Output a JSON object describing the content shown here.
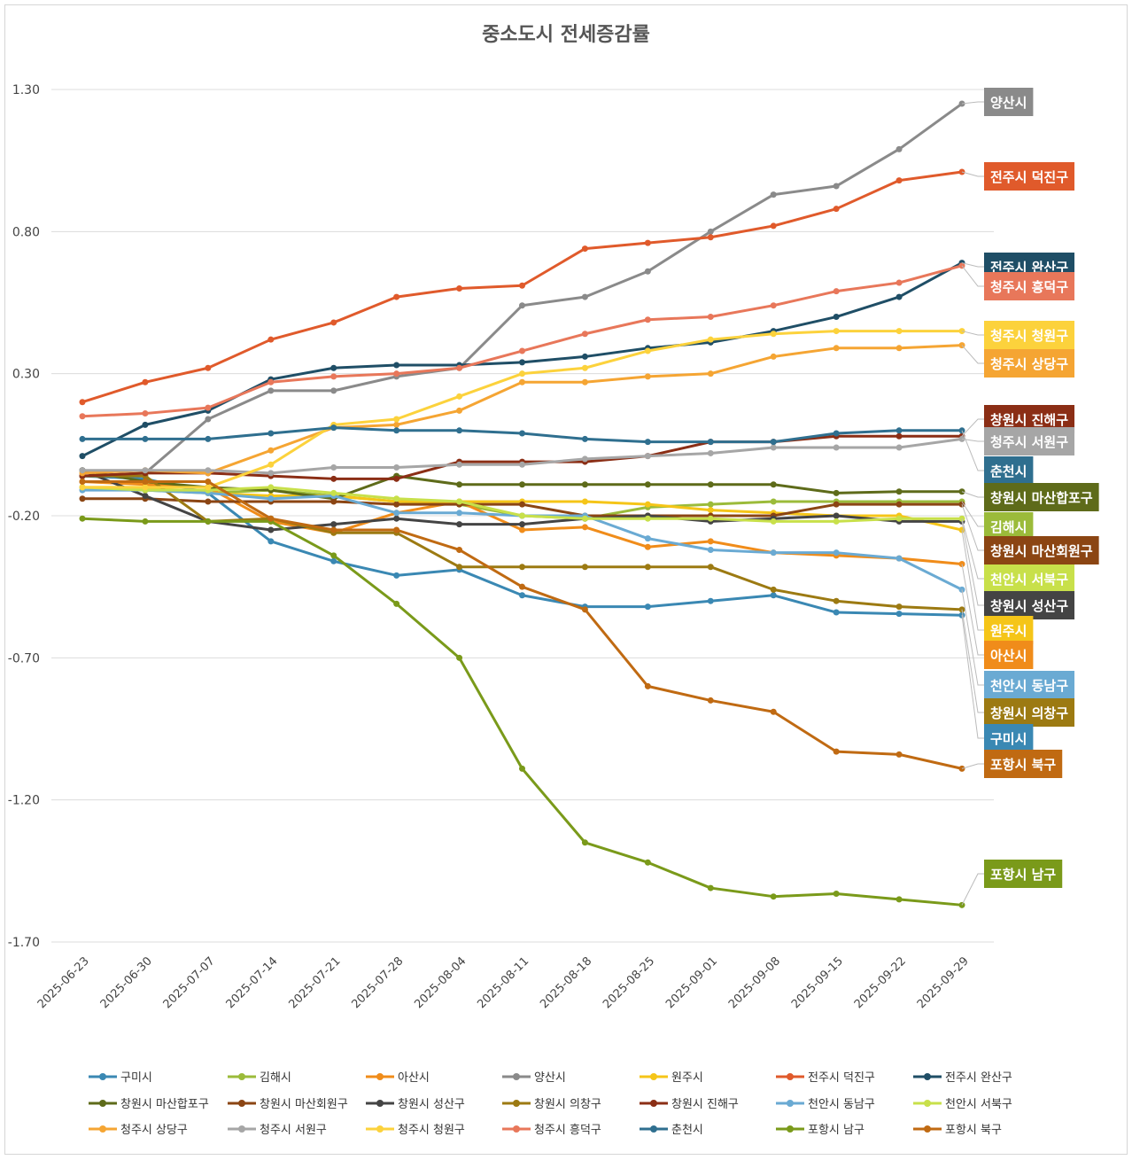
{
  "chart_data": {
    "type": "line",
    "title": "중소도시 전세증감률",
    "xlabel": "",
    "ylabel": "",
    "ylim": [
      -1.7,
      1.3
    ],
    "yticks": [
      1.3,
      0.8,
      0.3,
      -0.2,
      -0.7,
      -1.2,
      -1.7
    ],
    "ytick_labels": [
      "1.30",
      "0.80",
      "0.30",
      "-0.20",
      "-0.70",
      "-1.20",
      "-1.70"
    ],
    "categories": [
      "2025-06-23",
      "2025-06-30",
      "2025-07-07",
      "2025-07-14",
      "2025-07-21",
      "2025-07-28",
      "2025-08-04",
      "2025-08-11",
      "2025-08-18",
      "2025-08-25",
      "2025-09-01",
      "2025-09-08",
      "2025-09-15",
      "2025-09-22",
      "2025-09-29"
    ],
    "grid": true,
    "legend_position": "bottom",
    "series": [
      {
        "name": "구미시",
        "color": "#3a88b3",
        "values": [
          -0.06,
          -0.07,
          -0.12,
          -0.29,
          -0.36,
          -0.41,
          -0.39,
          -0.48,
          -0.52,
          -0.52,
          -0.5,
          -0.48,
          -0.54,
          -0.545,
          -0.55
        ]
      },
      {
        "name": "김해시",
        "color": "#9bbb3a",
        "values": [
          -0.1,
          -0.11,
          -0.12,
          -0.11,
          -0.13,
          -0.15,
          -0.16,
          -0.2,
          -0.21,
          -0.17,
          -0.16,
          -0.15,
          -0.15,
          -0.15,
          -0.15
        ]
      },
      {
        "name": "아산시",
        "color": "#f08c1a",
        "values": [
          -0.08,
          -0.09,
          -0.1,
          -0.22,
          -0.26,
          -0.19,
          -0.15,
          -0.25,
          -0.24,
          -0.31,
          -0.29,
          -0.33,
          -0.34,
          -0.35,
          -0.37
        ]
      },
      {
        "name": "양산시",
        "color": "#8a8a8a",
        "values": [
          -0.06,
          -0.05,
          0.14,
          0.24,
          0.24,
          0.29,
          0.32,
          0.54,
          0.57,
          0.66,
          0.8,
          0.93,
          0.96,
          1.09,
          1.25
        ]
      },
      {
        "name": "원주시",
        "color": "#f5c518",
        "values": [
          -0.1,
          -0.1,
          -0.12,
          -0.13,
          -0.13,
          -0.15,
          -0.15,
          -0.15,
          -0.15,
          -0.16,
          -0.18,
          -0.19,
          -0.2,
          -0.2,
          -0.25
        ]
      },
      {
        "name": "전주시 덕진구",
        "color": "#e05a2b",
        "values": [
          0.2,
          0.27,
          0.32,
          0.42,
          0.48,
          0.57,
          0.6,
          0.61,
          0.74,
          0.76,
          0.78,
          0.82,
          0.88,
          0.98,
          1.01
        ]
      },
      {
        "name": "전주시 완산구",
        "color": "#1f4e66",
        "values": [
          0.01,
          0.12,
          0.17,
          0.28,
          0.32,
          0.33,
          0.33,
          0.34,
          0.36,
          0.39,
          0.41,
          0.45,
          0.5,
          0.57,
          0.69
        ]
      },
      {
        "name": "창원시 마산합포구",
        "color": "#5e6b1a",
        "values": [
          -0.04,
          -0.08,
          -0.1,
          -0.11,
          -0.14,
          -0.06,
          -0.09,
          -0.09,
          -0.09,
          -0.09,
          -0.09,
          -0.09,
          -0.12,
          -0.115,
          -0.115
        ]
      },
      {
        "name": "창원시 마산회원구",
        "color": "#8b4513",
        "values": [
          -0.14,
          -0.14,
          -0.15,
          -0.15,
          -0.15,
          -0.16,
          -0.16,
          -0.16,
          -0.2,
          -0.2,
          -0.2,
          -0.2,
          -0.16,
          -0.16,
          -0.16
        ]
      },
      {
        "name": "창원시 성산구",
        "color": "#444444",
        "values": [
          -0.04,
          -0.13,
          -0.22,
          -0.25,
          -0.23,
          -0.21,
          -0.23,
          -0.23,
          -0.21,
          -0.2,
          -0.22,
          -0.21,
          -0.2,
          -0.22,
          -0.22
        ]
      },
      {
        "name": "창원시 의창구",
        "color": "#9c7a12",
        "values": [
          -0.06,
          -0.06,
          -0.22,
          -0.21,
          -0.26,
          -0.26,
          -0.38,
          -0.38,
          -0.38,
          -0.38,
          -0.38,
          -0.46,
          -0.5,
          -0.52,
          -0.53
        ]
      },
      {
        "name": "창원시 진해구",
        "color": "#8b2e15",
        "values": [
          -0.06,
          -0.05,
          -0.05,
          -0.06,
          -0.07,
          -0.07,
          -0.01,
          -0.01,
          -0.01,
          0.01,
          0.06,
          0.06,
          0.08,
          0.08,
          0.08
        ]
      },
      {
        "name": "천안시 동남구",
        "color": "#6aaad3",
        "values": [
          -0.11,
          -0.11,
          -0.12,
          -0.14,
          -0.13,
          -0.19,
          -0.19,
          -0.2,
          -0.2,
          -0.28,
          -0.32,
          -0.33,
          -0.33,
          -0.35,
          -0.46
        ]
      },
      {
        "name": "천안시 서북구",
        "color": "#c8e04a",
        "values": [
          -0.1,
          -0.11,
          -0.11,
          -0.1,
          -0.12,
          -0.14,
          -0.15,
          -0.2,
          -0.21,
          -0.21,
          -0.21,
          -0.22,
          -0.22,
          -0.21,
          -0.21
        ]
      },
      {
        "name": "청주시 상당구",
        "color": "#f5a533",
        "values": [
          -0.05,
          -0.04,
          -0.05,
          0.03,
          0.11,
          0.12,
          0.17,
          0.27,
          0.27,
          0.29,
          0.3,
          0.36,
          0.39,
          0.39,
          0.4
        ]
      },
      {
        "name": "청주시 서원구",
        "color": "#a6a6a6",
        "values": [
          -0.04,
          -0.04,
          -0.04,
          -0.05,
          -0.03,
          -0.03,
          -0.02,
          -0.02,
          0.0,
          0.01,
          0.02,
          0.04,
          0.04,
          0.04,
          0.07
        ]
      },
      {
        "name": "청주시 청원구",
        "color": "#fcd23c",
        "values": [
          -0.1,
          -0.1,
          -0.1,
          -0.02,
          0.12,
          0.14,
          0.22,
          0.3,
          0.32,
          0.38,
          0.42,
          0.44,
          0.45,
          0.45,
          0.45
        ]
      },
      {
        "name": "청주시 흥덕구",
        "color": "#e8775a",
        "values": [
          0.15,
          0.16,
          0.18,
          0.27,
          0.29,
          0.3,
          0.32,
          0.38,
          0.44,
          0.49,
          0.5,
          0.54,
          0.59,
          0.62,
          0.68
        ]
      },
      {
        "name": "춘천시",
        "color": "#2f6f8f",
        "values": [
          0.07,
          0.07,
          0.07,
          0.09,
          0.11,
          0.1,
          0.1,
          0.09,
          0.07,
          0.06,
          0.06,
          0.06,
          0.09,
          0.1,
          0.1
        ]
      },
      {
        "name": "포항시 남구",
        "color": "#7a9a1a",
        "values": [
          -0.21,
          -0.22,
          -0.22,
          -0.22,
          -0.34,
          -0.51,
          -0.7,
          -1.09,
          -1.35,
          -1.42,
          -1.51,
          -1.54,
          -1.53,
          -1.55,
          -1.57
        ]
      },
      {
        "name": "포항시 북구",
        "color": "#c06a12",
        "values": [
          -0.08,
          -0.08,
          -0.08,
          -0.21,
          -0.25,
          -0.25,
          -0.32,
          -0.45,
          -0.53,
          -0.8,
          -0.85,
          -0.89,
          -1.03,
          -1.04,
          -1.09
        ]
      }
    ],
    "end_labels": [
      {
        "series": "양산시",
        "text": "양산시"
      },
      {
        "series": "전주시 덕진구",
        "text": "전주시 덕진구"
      },
      {
        "series": "전주시 완산구",
        "text": "전주시 완산구"
      },
      {
        "series": "청주시 흥덕구",
        "text": "청주시 흥덕구"
      },
      {
        "series": "청주시 청원구",
        "text": "청주시 청원구"
      },
      {
        "series": "청주시 상당구",
        "text": "청주시 상당구"
      },
      {
        "series": "창원시 진해구",
        "text": "창원시 진해구"
      },
      {
        "series": "청주시 서원구",
        "text": "청주시 서원구"
      },
      {
        "series": "춘천시",
        "text": "춘천시"
      },
      {
        "series": "창원시 마산합포구",
        "text": "창원시 마산합포구"
      },
      {
        "series": "김해시",
        "text": "김해시"
      },
      {
        "series": "창원시 마산회원구",
        "text": "창원시 마산회원구"
      },
      {
        "series": "천안시 서북구",
        "text": "천안시 서북구"
      },
      {
        "series": "창원시 성산구",
        "text": "창원시 성산구"
      },
      {
        "series": "원주시",
        "text": "원주시"
      },
      {
        "series": "아산시",
        "text": "아산시"
      },
      {
        "series": "천안시 동남구",
        "text": "천안시 동남구"
      },
      {
        "series": "창원시 의창구",
        "text": "창원시 의창구"
      },
      {
        "series": "구미시",
        "text": "구미시"
      },
      {
        "series": "포항시 북구",
        "text": "포항시 북구"
      },
      {
        "series": "포항시 남구",
        "text": "포항시 남구"
      }
    ]
  }
}
